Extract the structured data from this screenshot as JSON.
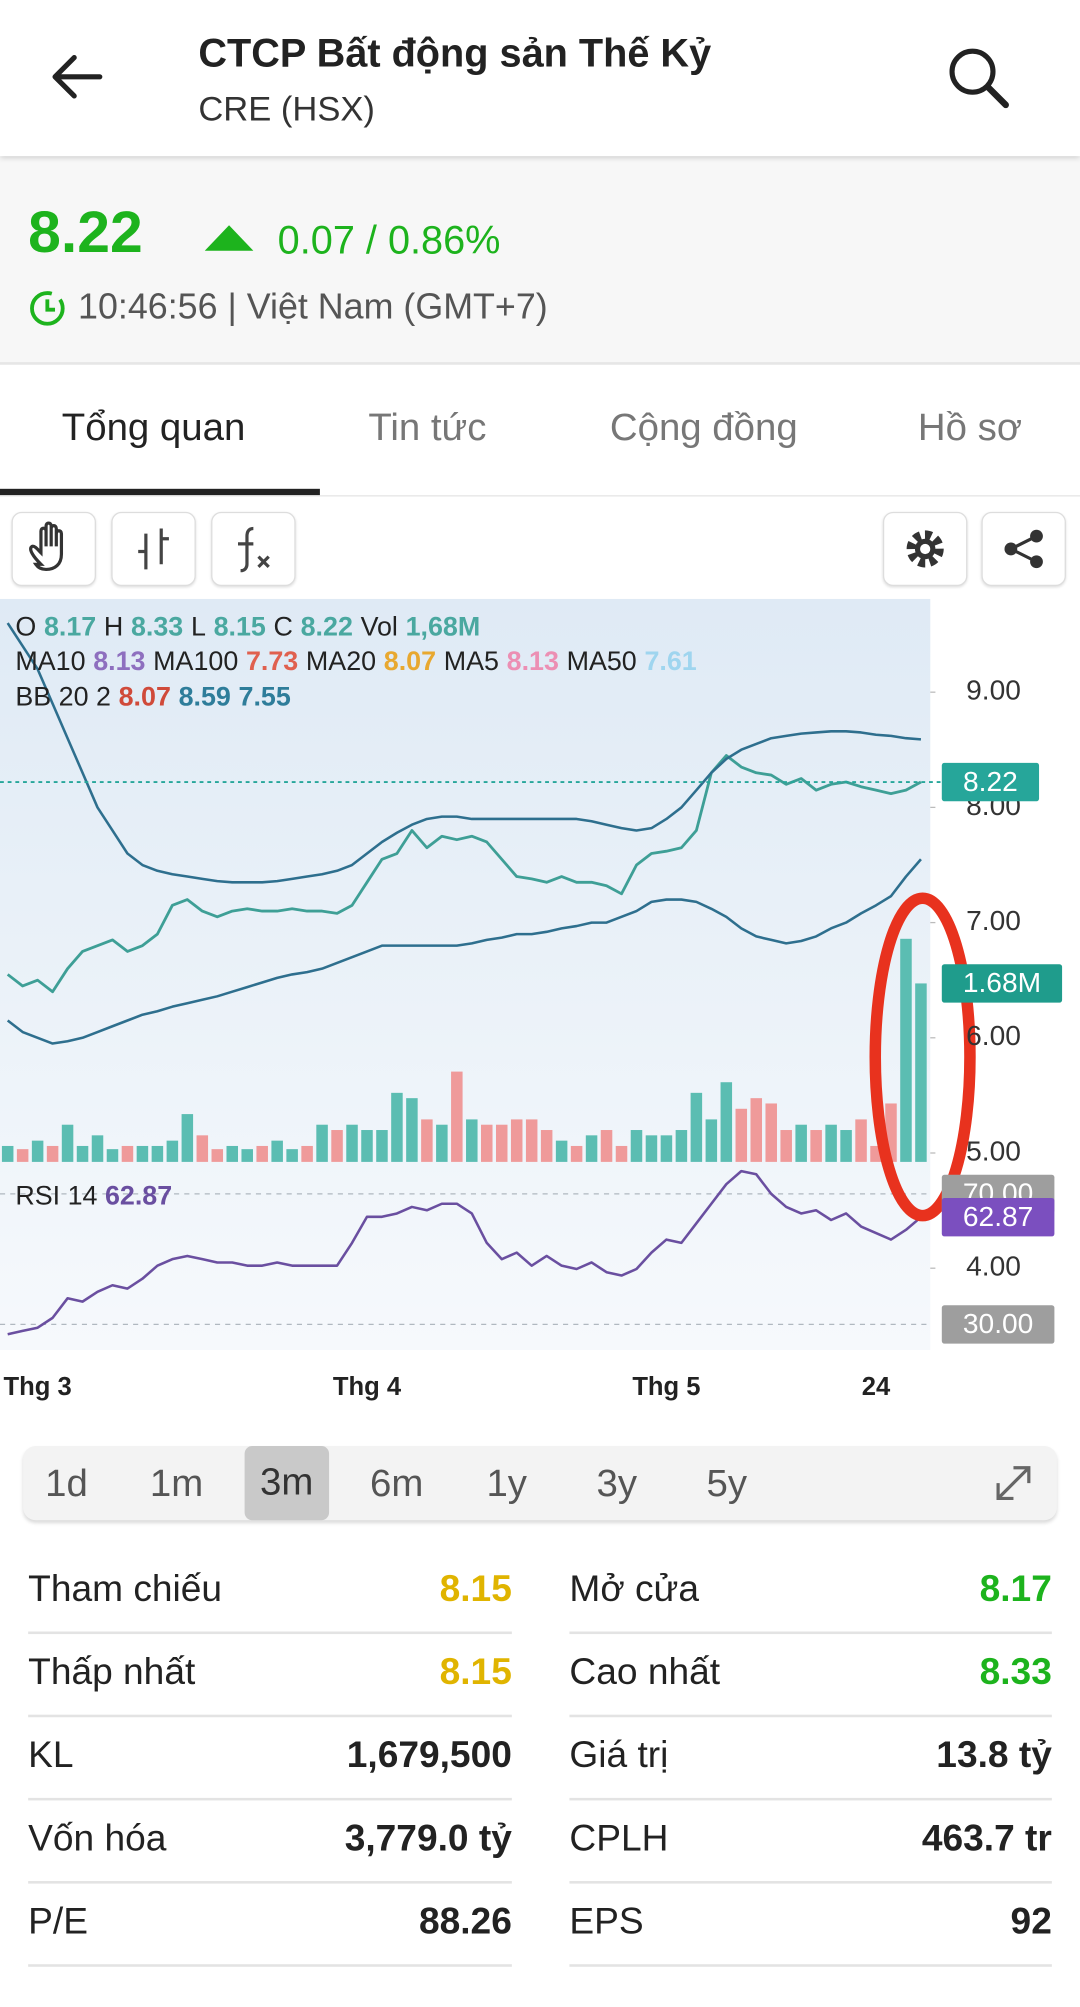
{
  "header": {
    "title": "CTCP Bất động sản Thế Kỷ",
    "subtitle": "CRE (HSX)"
  },
  "quote": {
    "price": "8.22",
    "change": "0.07 / 0.86%",
    "time": "10:46:56 | Việt Nam (GMT+7)"
  },
  "tabs": {
    "items": [
      "Tổng quan",
      "Tin tức",
      "Cộng đồng",
      "Hồ sơ"
    ],
    "selected": 0
  },
  "periods": {
    "items": [
      "1d",
      "1m",
      "3m",
      "6m",
      "1y",
      "3y",
      "5y"
    ],
    "selected": 2
  },
  "chart_data": {
    "type": "line",
    "ohlc_legend": [
      {
        "label": "O",
        "value": "8.17"
      },
      {
        "label": "H",
        "value": "8.33"
      },
      {
        "label": "L",
        "value": "8.15"
      },
      {
        "label": "C",
        "value": "8.22"
      },
      {
        "label": "Vol",
        "value": "1,68M"
      }
    ],
    "ma_legend": [
      {
        "label": "MA10",
        "value": "8.13",
        "color": "#8e6fbf"
      },
      {
        "label": "MA100",
        "value": "7.73",
        "color": "#e0604f"
      },
      {
        "label": "MA20",
        "value": "8.07",
        "color": "#e8a830"
      },
      {
        "label": "MA5",
        "value": "8.13",
        "color": "#ec8fb4"
      },
      {
        "label": "MA50",
        "value": "7.61",
        "color": "#9fd5ef"
      }
    ],
    "bb_legend": {
      "label": "BB 20 2",
      "values": [
        "8.07",
        "8.59",
        "7.55"
      ],
      "colors": [
        "#d04a3a",
        "#2e7d9a",
        "#2e7d9a"
      ]
    },
    "categories": [
      null,
      null,
      "Thg 3",
      null,
      null,
      null,
      null,
      null,
      null,
      null,
      null,
      null,
      null,
      null,
      null,
      null,
      null,
      null,
      null,
      null,
      null,
      null,
      null,
      null,
      "Thg 4",
      null,
      null,
      null,
      null,
      null,
      null,
      null,
      null,
      null,
      null,
      null,
      null,
      null,
      null,
      null,
      null,
      null,
      null,
      null,
      "Thg 5",
      null,
      null,
      null,
      null,
      null,
      null,
      null,
      null,
      null,
      null,
      null,
      null,
      null,
      "24",
      null,
      null,
      null
    ],
    "series": [
      {
        "color": "#3e9f96",
        "values": [
          6.55,
          6.45,
          6.5,
          6.4,
          6.6,
          6.75,
          6.8,
          6.85,
          6.75,
          6.8,
          6.9,
          7.15,
          7.2,
          7.1,
          7.05,
          7.1,
          7.12,
          7.1,
          7.1,
          7.12,
          7.1,
          7.1,
          7.08,
          7.15,
          7.35,
          7.55,
          7.6,
          7.8,
          7.65,
          7.75,
          7.72,
          7.75,
          7.7,
          7.55,
          7.4,
          7.38,
          7.35,
          7.4,
          7.35,
          7.35,
          7.32,
          7.25,
          7.5,
          7.6,
          7.62,
          7.65,
          7.8,
          8.3,
          8.45,
          8.35,
          8.3,
          8.28,
          8.2,
          8.25,
          8.15,
          8.2,
          8.22,
          8.18,
          8.15,
          8.12,
          8.15,
          8.22
        ]
      },
      {
        "color": "#2e6f8e",
        "values": [
          9.6,
          9.4,
          9.2,
          8.9,
          8.6,
          8.3,
          8.0,
          7.8,
          7.6,
          7.5,
          7.45,
          7.42,
          7.4,
          7.38,
          7.36,
          7.35,
          7.35,
          7.35,
          7.36,
          7.38,
          7.4,
          7.42,
          7.45,
          7.5,
          7.6,
          7.7,
          7.78,
          7.85,
          7.9,
          7.92,
          7.92,
          7.9,
          7.9,
          7.9,
          7.9,
          7.9,
          7.9,
          7.9,
          7.9,
          7.88,
          7.85,
          7.82,
          7.8,
          7.82,
          7.9,
          8.0,
          8.15,
          8.3,
          8.42,
          8.5,
          8.55,
          8.6,
          8.62,
          8.64,
          8.65,
          8.66,
          8.66,
          8.65,
          8.63,
          8.62,
          8.6,
          8.59
        ]
      },
      {
        "color": "#2e6f8e",
        "values": [
          6.15,
          6.05,
          6.0,
          5.95,
          5.97,
          6.0,
          6.05,
          6.1,
          6.15,
          6.2,
          6.23,
          6.27,
          6.3,
          6.33,
          6.36,
          6.4,
          6.44,
          6.48,
          6.52,
          6.55,
          6.57,
          6.6,
          6.65,
          6.7,
          6.75,
          6.8,
          6.8,
          6.8,
          6.8,
          6.8,
          6.8,
          6.82,
          6.85,
          6.87,
          6.9,
          6.9,
          6.92,
          6.95,
          6.97,
          7.0,
          7.0,
          7.05,
          7.1,
          7.18,
          7.2,
          7.2,
          7.18,
          7.12,
          7.05,
          6.95,
          6.88,
          6.85,
          6.82,
          6.84,
          6.88,
          6.95,
          7.0,
          7.08,
          7.15,
          7.23,
          7.4,
          7.55
        ]
      }
    ],
    "ylim": [
      3.29,
      9.81
    ],
    "yticks": [
      {
        "value": 9,
        "label": "9.00"
      },
      {
        "value": 8,
        "label": "8.00"
      },
      {
        "value": 7,
        "label": "7.00"
      },
      {
        "value": 6,
        "label": "6.00"
      },
      {
        "value": 5,
        "label": "5.00"
      },
      {
        "value": 4,
        "label": "4.00"
      }
    ],
    "last_price": {
      "value": 8.22,
      "label": "8.22",
      "color": "#26a69a"
    },
    "volume": {
      "up_color": "#5bbdb2",
      "down_color": "#ef9a9a",
      "ylim": [
        0,
        5.3
      ],
      "values": [
        0.15,
        0.12,
        0.2,
        0.15,
        0.35,
        0.15,
        0.25,
        0.12,
        0.15,
        0.15,
        0.15,
        0.2,
        0.45,
        0.25,
        0.12,
        0.15,
        0.12,
        0.15,
        0.2,
        0.12,
        0.15,
        0.35,
        0.3,
        0.35,
        0.3,
        0.3,
        0.65,
        0.6,
        0.4,
        0.35,
        0.85,
        0.4,
        0.35,
        0.35,
        0.4,
        0.4,
        0.3,
        0.2,
        0.15,
        0.25,
        0.3,
        0.15,
        0.3,
        0.25,
        0.25,
        0.3,
        0.65,
        0.4,
        0.75,
        0.5,
        0.6,
        0.55,
        0.3,
        0.35,
        0.3,
        0.35,
        0.3,
        0.4,
        0.15,
        0.55,
        2.1,
        1.68
      ],
      "marker": {
        "value": 1.68,
        "label": "1.68M",
        "color": "#1f9c8c"
      }
    },
    "rsi": {
      "label": "RSI 14",
      "legend_value": "62.87",
      "color": "#6a4fa0",
      "ylim": [
        22.16,
        77.06
      ],
      "values": [
        27,
        28,
        29,
        32,
        38,
        37,
        40,
        42,
        41,
        44,
        48,
        50,
        51,
        50,
        49,
        49,
        48,
        48,
        49,
        48,
        48,
        48,
        48,
        55,
        63,
        63,
        64,
        66,
        65,
        67,
        67,
        64,
        55,
        50,
        52,
        48,
        51,
        48,
        47,
        49,
        46,
        45,
        47,
        52,
        56,
        55,
        61,
        67,
        73,
        77,
        76,
        70,
        66,
        64,
        65,
        62,
        64,
        60,
        58,
        56,
        59,
        62.87
      ],
      "yticks": [
        {
          "value": 70,
          "label": "70.00"
        },
        {
          "value": 30,
          "label": "30.00"
        }
      ],
      "marker": {
        "value": 62.87,
        "label": "62.87",
        "color": "#7b4fbf"
      }
    }
  },
  "stats": {
    "rows": [
      [
        "Tham chiếu",
        "8.15",
        "Mở cửa",
        "8.17"
      ],
      [
        "Thấp nhất",
        "8.15",
        "Cao nhất",
        "8.33"
      ],
      [
        "KL",
        "1,679,500",
        "Giá trị",
        "13.8 tỷ"
      ],
      [
        "Vốn hóa",
        "3,779.0 tỷ",
        "CPLH",
        "463.7 tr"
      ],
      [
        "P/E",
        "88.26",
        "EPS",
        "92"
      ]
    ]
  }
}
